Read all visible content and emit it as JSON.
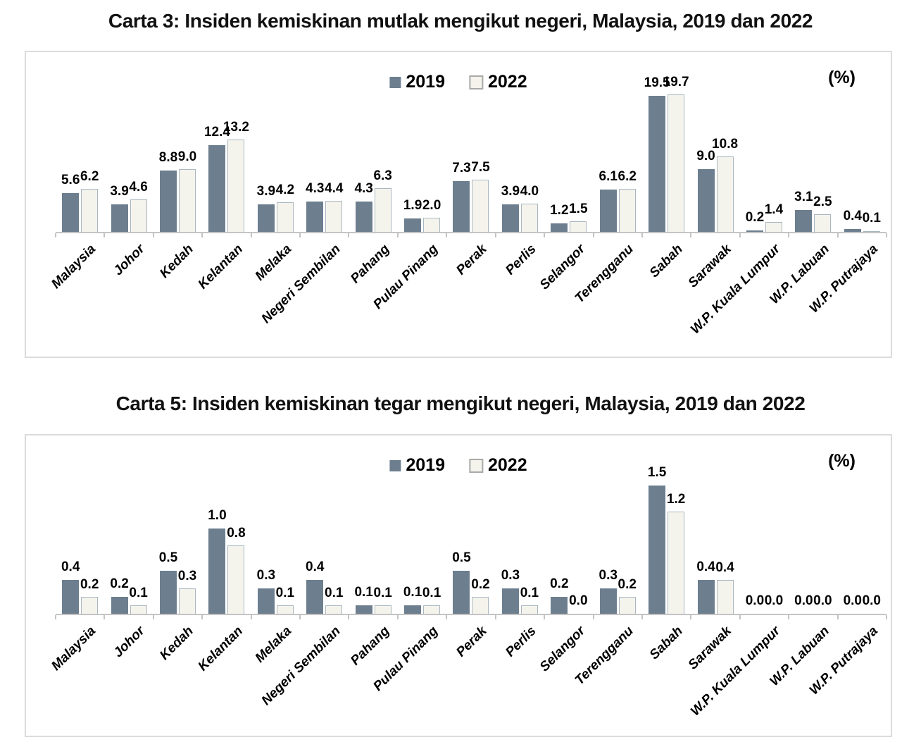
{
  "colors": {
    "series_2019": "#6d7f8f",
    "series_2022_fill": "#f4f3ec",
    "series_2022_border": "#a9b7c1",
    "axis": "#c4c4c4",
    "panel_border": "#dbdbdb"
  },
  "chart_data": [
    {
      "type": "bar",
      "title": "Carta 3: Insiden kemiskinan mutlak mengikut negeri, Malaysia, 2019 dan 2022",
      "unit_label": "(%)",
      "legend_position": "top-center",
      "grid": false,
      "data_labels": true,
      "ylim": [
        0,
        21
      ],
      "categories": [
        "Malaysia",
        "Johor",
        "Kedah",
        "Kelantan",
        "Melaka",
        "Negeri Sembilan",
        "Pahang",
        "Pulau Pinang",
        "Perak",
        "Perlis",
        "Selangor",
        "Terengganu",
        "Sabah",
        "Sarawak",
        "W.P. Kuala Lumpur",
        "W.P. Labuan",
        "W.P. Putrajaya"
      ],
      "series": [
        {
          "name": "2019",
          "values": [
            5.6,
            3.9,
            8.8,
            12.4,
            3.9,
            4.3,
            4.3,
            1.9,
            7.3,
            3.9,
            1.2,
            6.1,
            19.5,
            9.0,
            0.2,
            3.1,
            0.4
          ]
        },
        {
          "name": "2022",
          "values": [
            6.2,
            4.6,
            9.0,
            13.2,
            4.2,
            4.4,
            6.3,
            2.0,
            7.5,
            4.0,
            1.5,
            6.2,
            19.7,
            10.8,
            1.4,
            2.5,
            0.1
          ]
        }
      ]
    },
    {
      "type": "bar",
      "title": "Carta 5: Insiden kemiskinan tegar mengikut negeri, Malaysia, 2019 dan 2022",
      "unit_label": "(%)",
      "legend_position": "top-center",
      "grid": false,
      "data_labels": true,
      "ylim": [
        0,
        1.65
      ],
      "categories": [
        "Malaysia",
        "Johor",
        "Kedah",
        "Kelantan",
        "Melaka",
        "Negeri Sembilan",
        "Pahang",
        "Pulau Pinang",
        "Perak",
        "Perlis",
        "Selangor",
        "Terengganu",
        "Sabah",
        "Sarawak",
        "W.P. Kuala Lumpur",
        "W.P. Labuan",
        "W.P. Putrajaya"
      ],
      "series": [
        {
          "name": "2019",
          "values": [
            0.4,
            0.2,
            0.5,
            1.0,
            0.3,
            0.4,
            0.1,
            0.1,
            0.5,
            0.3,
            0.2,
            0.3,
            1.5,
            0.4,
            0.0,
            0.0,
            0.0
          ]
        },
        {
          "name": "2022",
          "values": [
            0.2,
            0.1,
            0.3,
            0.8,
            0.1,
            0.1,
            0.1,
            0.1,
            0.2,
            0.1,
            0.0,
            0.2,
            1.2,
            0.4,
            0.0,
            0.0,
            0.0
          ]
        }
      ]
    }
  ]
}
